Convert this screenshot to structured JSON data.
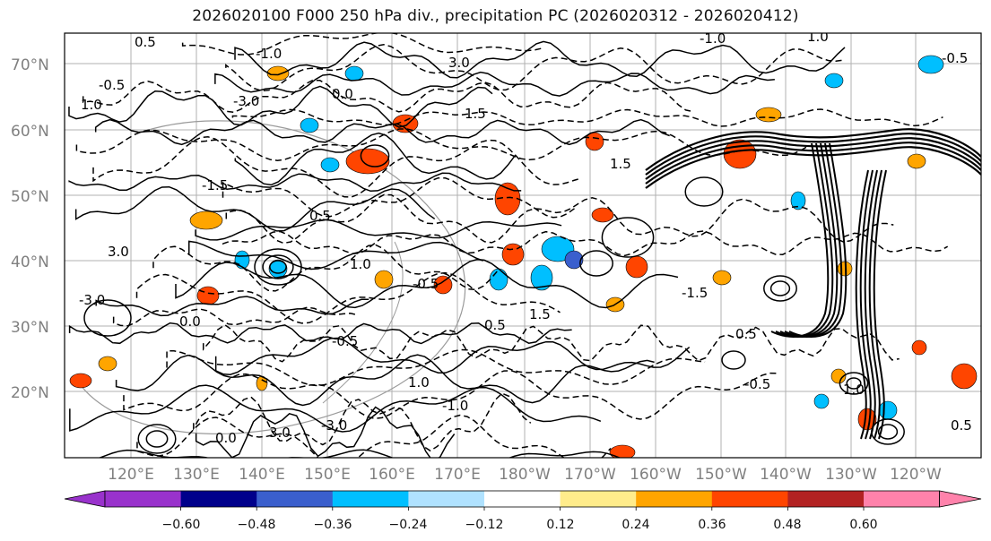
{
  "title": "2026020100 F000 250 hPa div., precipitation PC (2026020312 - 2026020412)",
  "map": {
    "lat_labels": [
      "70°N",
      "60°N",
      "50°N",
      "40°N",
      "30°N",
      "20°N"
    ],
    "lon_labels": [
      "120°E",
      "130°E",
      "140°E",
      "150°E",
      "160°E",
      "170°E",
      "180°W",
      "170°W",
      "160°W",
      "150°W",
      "140°W",
      "130°W",
      "120°W"
    ],
    "contour_labels": [
      "0.5",
      "-0.5",
      "1.0",
      "-1.0",
      "3.0",
      "-3.0",
      "0.0",
      "1.5",
      "-1.5",
      "0.5",
      "-0.5",
      "1.0"
    ]
  },
  "colorbar": {
    "levels": [
      "−0.60",
      "−0.48",
      "−0.36",
      "−0.24",
      "−0.12",
      "0.12",
      "0.24",
      "0.36",
      "0.48",
      "0.60"
    ],
    "colors": [
      "#9932CC",
      "#00008B",
      "#3A5FCD",
      "#00BFFF",
      "#B0E2FF",
      "#FFFFFF",
      "#FFEC8B",
      "#FFA500",
      "#FF4500",
      "#B22222",
      "#FF82AB"
    ]
  },
  "style": {
    "gridline_color": "#b0b0b0",
    "contour_color": "#000000"
  }
}
